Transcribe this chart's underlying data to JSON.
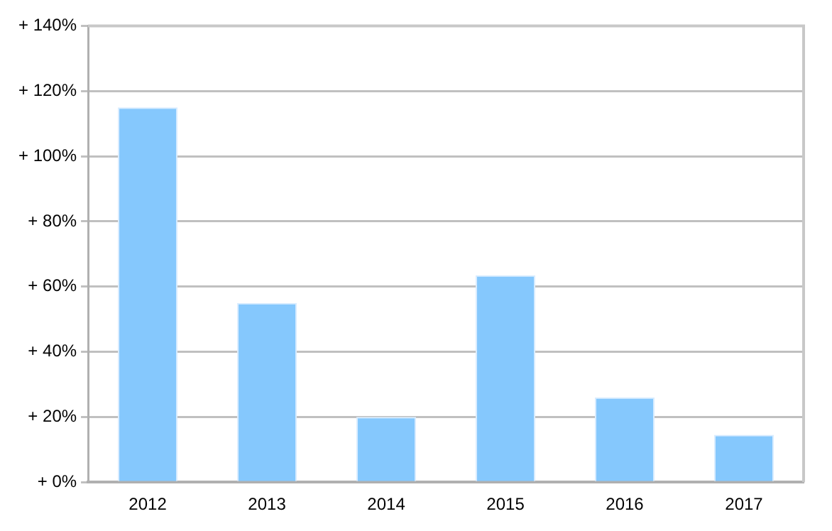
{
  "chart_data": {
    "type": "bar",
    "categories": [
      "2012",
      "2013",
      "2014",
      "2015",
      "2016",
      "2017"
    ],
    "values": [
      115,
      55,
      20,
      63.5,
      26,
      14.5
    ],
    "color": "#85c8fd",
    "ylim": [
      0,
      140
    ],
    "yticks": [
      {
        "value": 0,
        "label": "+ 0%"
      },
      {
        "value": 20,
        "label": "+ 20%"
      },
      {
        "value": 40,
        "label": "+ 40%"
      },
      {
        "value": 60,
        "label": "+ 60%"
      },
      {
        "value": 80,
        "label": "+ 80%"
      },
      {
        "value": 100,
        "label": "+ 100%"
      },
      {
        "value": 120,
        "label": "+ 120%"
      },
      {
        "value": 140,
        "label": "+ 140%"
      }
    ],
    "grid": "y",
    "legend": false
  }
}
